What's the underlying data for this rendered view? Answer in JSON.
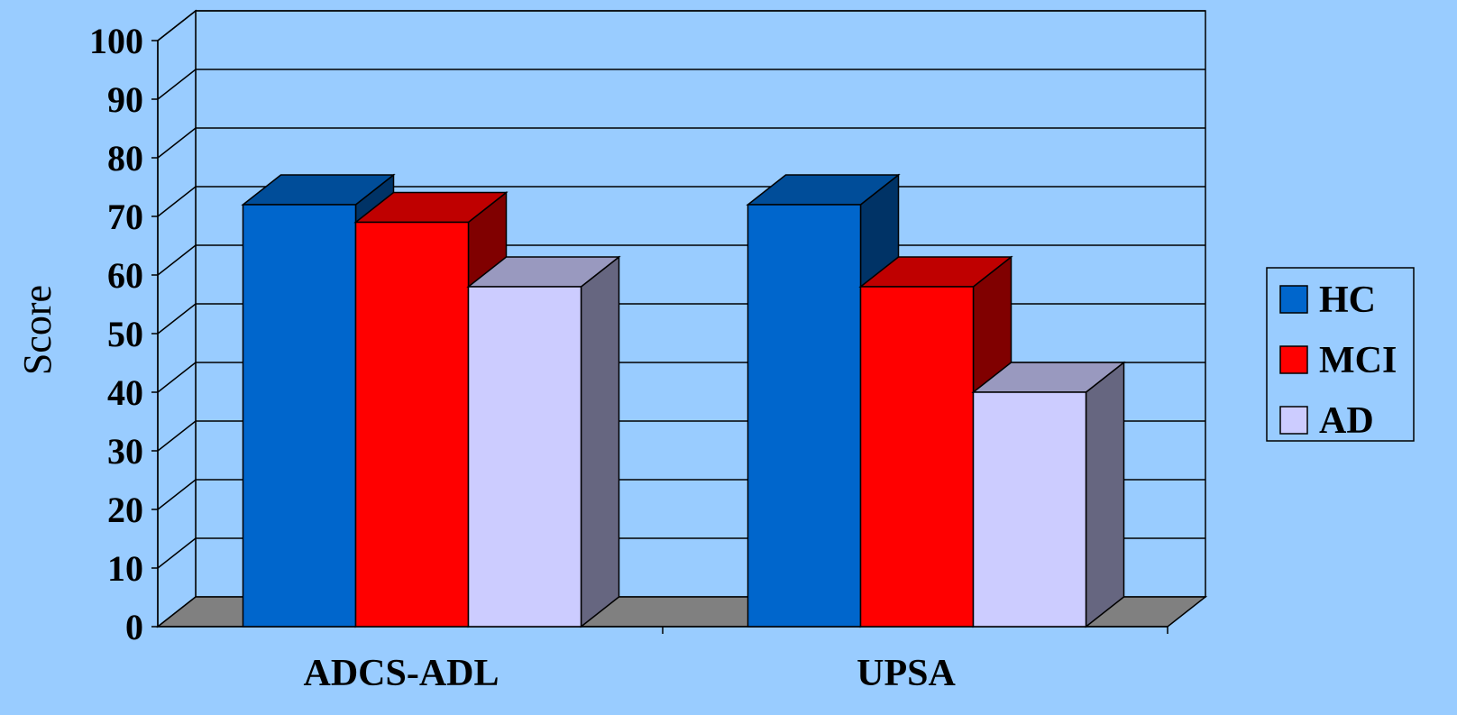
{
  "chart_data": {
    "type": "bar",
    "style": "3d-clustered-column",
    "categories": [
      "ADCS-ADL",
      "UPSA"
    ],
    "series": [
      {
        "name": "HC",
        "values": [
          72,
          72
        ],
        "color": "#0066cc"
      },
      {
        "name": "MCI",
        "values": [
          69,
          58
        ],
        "color": "#ff0000"
      },
      {
        "name": "AD",
        "values": [
          58,
          40
        ],
        "color": "#ccccff"
      }
    ],
    "title": "",
    "xlabel": "",
    "ylabel": "Score",
    "ylim": [
      0,
      100
    ],
    "yticks": [
      "0",
      "10",
      "20",
      "30",
      "40",
      "50",
      "60",
      "70",
      "80",
      "90",
      "100"
    ],
    "grid": true,
    "legend_position": "right",
    "colors": {
      "background": "#99ccff",
      "floor": "#808080",
      "gridline": "#000000"
    }
  }
}
